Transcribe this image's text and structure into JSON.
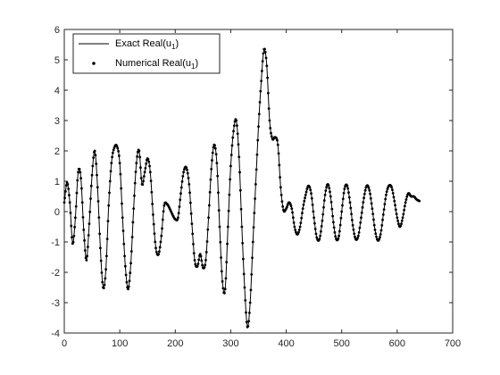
{
  "chart_data": {
    "type": "line",
    "title": "",
    "xlabel": "",
    "ylabel": "",
    "xlim": [
      0,
      700
    ],
    "ylim": [
      -4,
      6
    ],
    "xticks": [
      0,
      100,
      200,
      300,
      400,
      500,
      600,
      700
    ],
    "yticks": [
      -4,
      -3,
      -2,
      -1,
      0,
      1,
      2,
      3,
      4,
      5,
      6
    ],
    "grid": false,
    "legend_position": "top-left",
    "series": [
      {
        "name": "Exact Real(u1)",
        "style": "solid-line",
        "color": "#000000",
        "x": [
          0,
          5,
          10,
          15,
          20,
          25,
          30,
          35,
          40,
          45,
          50,
          55,
          60,
          65,
          70,
          75,
          80,
          85,
          90,
          95,
          100,
          105,
          110,
          115,
          120,
          125,
          130,
          135,
          140,
          145,
          150,
          155,
          160,
          165,
          170,
          175,
          180,
          185,
          190,
          195,
          200,
          205,
          210,
          215,
          220,
          225,
          230,
          235,
          240,
          245,
          250,
          255,
          260,
          265,
          270,
          275,
          280,
          285,
          290,
          295,
          300,
          305,
          310,
          315,
          320,
          325,
          330,
          335,
          340,
          345,
          350,
          355,
          360,
          365,
          370,
          375,
          380,
          385,
          390,
          395,
          400,
          405,
          410,
          415,
          420,
          425,
          430,
          435,
          440,
          445,
          450,
          455,
          460,
          465,
          470,
          475,
          480,
          485,
          490,
          495,
          500,
          505,
          510,
          515,
          520,
          525,
          530,
          535,
          540,
          545,
          550,
          555,
          560,
          565,
          570,
          575,
          580,
          585,
          590,
          595,
          600,
          605,
          610,
          615,
          620,
          625,
          630,
          635,
          640
        ],
        "y": [
          0.3,
          0.95,
          0.3,
          -1.05,
          -0.2,
          1.3,
          1.1,
          -0.6,
          -1.6,
          -0.4,
          1.2,
          2.0,
          0.8,
          -1.2,
          -2.5,
          -1.9,
          0.2,
          1.6,
          2.1,
          2.15,
          1.6,
          -0.2,
          -1.8,
          -2.55,
          -1.7,
          0.1,
          1.6,
          2.0,
          0.9,
          1.3,
          1.75,
          1.3,
          -0.1,
          -1.2,
          -1.4,
          -0.8,
          0.2,
          0.25,
          0.1,
          -0.1,
          -0.25,
          -0.2,
          0.6,
          1.3,
          1.45,
          0.9,
          -0.4,
          -1.6,
          -1.8,
          -1.4,
          -1.85,
          -1.6,
          -0.2,
          1.4,
          2.2,
          1.6,
          -0.5,
          -2.3,
          -2.55,
          -0.5,
          1.5,
          2.65,
          3.0,
          1.8,
          -0.5,
          -2.5,
          -3.8,
          -3.0,
          -1.0,
          0.9,
          2.8,
          4.3,
          5.35,
          4.8,
          3.0,
          2.4,
          2.45,
          2.2,
          0.8,
          0.05,
          0.1,
          0.3,
          0.1,
          -0.5,
          -0.75,
          -0.5,
          0.1,
          0.55,
          0.85,
          0.6,
          -0.2,
          -0.85,
          -0.9,
          -0.3,
          0.55,
          0.9,
          0.5,
          -0.35,
          -0.9,
          -0.8,
          0.0,
          0.75,
          0.85,
          0.3,
          -0.45,
          -0.9,
          -0.8,
          -0.2,
          0.45,
          0.85,
          0.7,
          0.1,
          -0.6,
          -0.95,
          -0.75,
          -0.1,
          0.55,
          0.85,
          0.8,
          0.35,
          -0.2,
          -0.5,
          -0.2,
          0.3,
          0.6,
          0.5,
          0.5,
          0.4,
          0.35
        ]
      },
      {
        "name": "Numerical Real(u1)",
        "style": "dots",
        "color": "#000000",
        "x": [
          0,
          5,
          10,
          15,
          20,
          25,
          30,
          35,
          40,
          45,
          50,
          55,
          60,
          65,
          70,
          75,
          80,
          85,
          90,
          95,
          100,
          105,
          110,
          115,
          120,
          125,
          130,
          135,
          140,
          145,
          150,
          155,
          160,
          165,
          170,
          175,
          180,
          185,
          190,
          195,
          200,
          205,
          210,
          215,
          220,
          225,
          230,
          235,
          240,
          245,
          250,
          255,
          260,
          265,
          270,
          275,
          280,
          285,
          290,
          295,
          300,
          305,
          310,
          315,
          320,
          325,
          330,
          335,
          340,
          345,
          350,
          355,
          360,
          365,
          370,
          375,
          380,
          385,
          390,
          395,
          400,
          405,
          410,
          415,
          420,
          425,
          430,
          435,
          440,
          445,
          450,
          455,
          460,
          465,
          470,
          475,
          480,
          485,
          490,
          495,
          500,
          505,
          510,
          515,
          520,
          525,
          530,
          535,
          540,
          545,
          550,
          555,
          560,
          565,
          570,
          575,
          580,
          585,
          590,
          595,
          600,
          605,
          610,
          615,
          620,
          625,
          630,
          635,
          640
        ],
        "y": [
          0.3,
          0.95,
          0.3,
          -1.05,
          -0.2,
          1.3,
          1.1,
          -0.6,
          -1.6,
          -0.4,
          1.2,
          2.0,
          0.8,
          -1.2,
          -2.5,
          -1.9,
          0.2,
          1.6,
          2.1,
          2.15,
          1.6,
          -0.2,
          -1.8,
          -2.55,
          -1.7,
          0.1,
          1.6,
          2.0,
          0.9,
          1.3,
          1.75,
          1.3,
          -0.1,
          -1.2,
          -1.4,
          -0.8,
          0.2,
          0.25,
          0.1,
          -0.1,
          -0.25,
          -0.2,
          0.6,
          1.3,
          1.45,
          0.9,
          -0.4,
          -1.6,
          -1.8,
          -1.4,
          -1.85,
          -1.6,
          -0.2,
          1.4,
          2.2,
          1.6,
          -0.5,
          -2.3,
          -2.55,
          -0.5,
          1.5,
          2.65,
          3.0,
          1.8,
          -0.5,
          -2.5,
          -3.8,
          -3.0,
          -1.0,
          0.9,
          2.8,
          4.3,
          5.35,
          4.8,
          3.0,
          2.4,
          2.45,
          2.2,
          0.8,
          0.05,
          0.1,
          0.3,
          0.1,
          -0.5,
          -0.75,
          -0.5,
          0.1,
          0.55,
          0.85,
          0.6,
          -0.2,
          -0.85,
          -0.9,
          -0.3,
          0.55,
          0.9,
          0.5,
          -0.35,
          -0.9,
          -0.8,
          0.0,
          0.75,
          0.85,
          0.3,
          -0.45,
          -0.9,
          -0.8,
          -0.2,
          0.45,
          0.85,
          0.7,
          0.1,
          -0.6,
          -0.95,
          -0.75,
          -0.1,
          0.55,
          0.85,
          0.8,
          0.35,
          -0.2,
          -0.5,
          -0.2,
          0.3,
          0.6,
          0.5,
          0.5,
          0.4,
          0.35
        ]
      }
    ]
  },
  "legend": {
    "items": [
      {
        "prefix": "Exact Real(u",
        "sub": "1",
        "suffix": ")"
      },
      {
        "prefix": "Numerical Real(u",
        "sub": "1",
        "suffix": ")"
      }
    ]
  }
}
